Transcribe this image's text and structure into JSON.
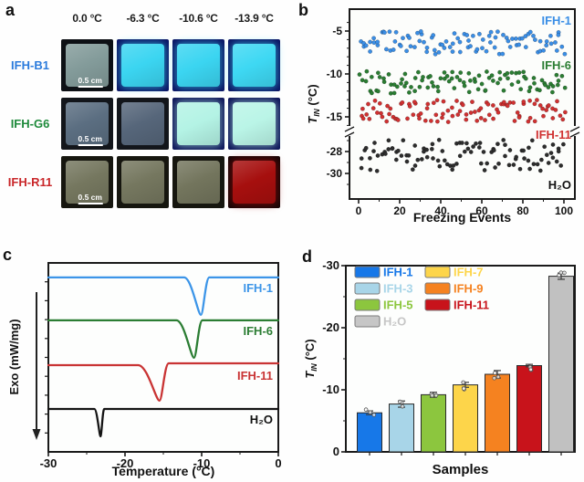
{
  "panel_letters": {
    "a": "a",
    "b": "b",
    "c": "c",
    "d": "d"
  },
  "panel_a": {
    "col_headers": [
      "0.0 °C",
      "-6.3 °C",
      "-10.6 °C",
      "-13.9 °C"
    ],
    "rows": [
      {
        "label": "IFH-B1",
        "label_color": "#2b7bdc",
        "scale_bar_label": "0.5 cm",
        "cells": [
          {
            "bg": "#0d1015",
            "sample": "#839b9a",
            "glow": false
          },
          {
            "bg": "#0a1162",
            "sample": "#3bd5f1",
            "glow": true
          },
          {
            "bg": "#0a1162",
            "sample": "#3bd5f1",
            "glow": true
          },
          {
            "bg": "#0a1162",
            "sample": "#3ed8f3",
            "glow": true
          }
        ]
      },
      {
        "label": "IFH-G6",
        "label_color": "#1e8a3b",
        "scale_bar_label": "0.5 cm",
        "cells": [
          {
            "bg": "#13161b",
            "sample": "#5b6e81",
            "glow": false
          },
          {
            "bg": "#13161b",
            "sample": "#56667a",
            "glow": false
          },
          {
            "bg": "#0a1157",
            "sample": "#b4f3e5",
            "glow": true
          },
          {
            "bg": "#0a1157",
            "sample": "#baf5e7",
            "glow": true
          }
        ]
      },
      {
        "label": "IFH-R11",
        "label_color": "#c9272a",
        "scale_bar_label": "0.5 cm",
        "cells": [
          {
            "bg": "#16160f",
            "sample": "#75775f",
            "glow": false
          },
          {
            "bg": "#16160f",
            "sample": "#75775f",
            "glow": false
          },
          {
            "bg": "#16160f",
            "sample": "#73755d",
            "glow": false
          },
          {
            "bg": "#150505",
            "sample": "#a60f0e",
            "glow": true
          }
        ]
      }
    ]
  },
  "chart_data": [
    {
      "id": "b",
      "type": "scatter",
      "xlabel": "Freezing Events",
      "ylabel": {
        "main": "T",
        "sub": "IN",
        "unit": " (°C)"
      },
      "x_ticks": [
        0,
        20,
        40,
        60,
        80,
        100
      ],
      "x_minor_ticks": [
        10,
        30,
        50,
        70,
        90
      ],
      "xlim": [
        -4,
        104
      ],
      "grid": false,
      "y_axis_break": true,
      "y_upper_ticks": [
        -5,
        -10,
        -15
      ],
      "y_lower_ticks": [
        -28,
        -30
      ],
      "points_seed": 42,
      "series": [
        {
          "name": "IFH-1",
          "color": "#3a8ee6",
          "band": [
            -5.0,
            -7.7
          ],
          "n": 100
        },
        {
          "name": "IFH-6",
          "color": "#2b7d33",
          "band": [
            -9.7,
            -12.3
          ],
          "n": 100
        },
        {
          "name": "IFH-11",
          "color": "#d03131",
          "band": [
            -12.9,
            -15.6
          ],
          "n": 100
        },
        {
          "name": "H₂O",
          "color": "#2d2d2d",
          "band": [
            -26.9,
            -29.8
          ],
          "n": 100
        }
      ]
    },
    {
      "id": "c",
      "type": "line",
      "xlabel": "Temperature (°C)",
      "ylabel": "Exo (mW/mg)",
      "x_ticks": [
        -30,
        -20,
        -10,
        0
      ],
      "x_minor_ticks": [
        -25,
        -15,
        -5
      ],
      "xlim": [
        -30,
        0
      ],
      "grid": false,
      "series": [
        {
          "name": "IFH-1",
          "color": "#3c95e8",
          "peak_temp": -10.1,
          "onset_width": 2.2,
          "recovery_width": 1.1,
          "baseline_frac": 0.077,
          "depth_frac": 0.198,
          "step_up": 0
        },
        {
          "name": "IFH-6",
          "color": "#2b7d33",
          "peak_temp": -11.0,
          "onset_width": 2.3,
          "recovery_width": 1.1,
          "baseline_frac": 0.304,
          "depth_frac": 0.198,
          "step_up": 0
        },
        {
          "name": "IFH-11",
          "color": "#c93434",
          "peak_temp": -15.5,
          "onset_width": 2.8,
          "recovery_width": 1.2,
          "baseline_frac": 0.541,
          "depth_frac": 0.188,
          "step_up": 2
        },
        {
          "name": "H₂O",
          "color": "#141414",
          "peak_temp": -23.2,
          "onset_width": 0.8,
          "recovery_width": 0.5,
          "baseline_frac": 0.773,
          "depth_frac": 0.145,
          "step_up": 0
        }
      ]
    },
    {
      "id": "d",
      "type": "bar",
      "xlabel": "Samples",
      "ylabel": {
        "main": "T",
        "sub": "IN",
        "unit": " (°C)"
      },
      "ylim": [
        0,
        -30
      ],
      "y_ticks": [
        0,
        -10,
        -20,
        -30
      ],
      "y_minor_ticks": [
        -5,
        -15,
        -25
      ],
      "categories": [
        "IFH-1",
        "IFH-3",
        "IFH-5",
        "IFH-7",
        "IFH-9",
        "IFH-11",
        "H₂O"
      ],
      "values": [
        -6.3,
        -7.7,
        -9.2,
        -10.8,
        -12.5,
        -13.9,
        -28.3
      ],
      "errors": [
        0.3,
        0.5,
        0.4,
        0.4,
        0.6,
        0.2,
        0.5
      ],
      "colors": [
        "#1778e8",
        "#a8d5e8",
        "#8cc63e",
        "#fdd54a",
        "#f58220",
        "#c8131b",
        "#c1c1c1"
      ],
      "legend": {
        "position": "upper-left",
        "columns": [
          [
            {
              "label": "IFH-1",
              "color": "#1778e8"
            },
            {
              "label": "IFH-3",
              "color": "#a8d5e8"
            },
            {
              "label": "IFH-5",
              "color": "#8cc63e"
            },
            {
              "label": "H₂O",
              "color": "#c6c6c6"
            }
          ],
          [
            {
              "label": "IFH-7",
              "color": "#fdd54a"
            },
            {
              "label": "IFH-9",
              "color": "#f58220"
            },
            {
              "label": "IFH-11",
              "color": "#c8131b"
            }
          ]
        ]
      }
    }
  ]
}
